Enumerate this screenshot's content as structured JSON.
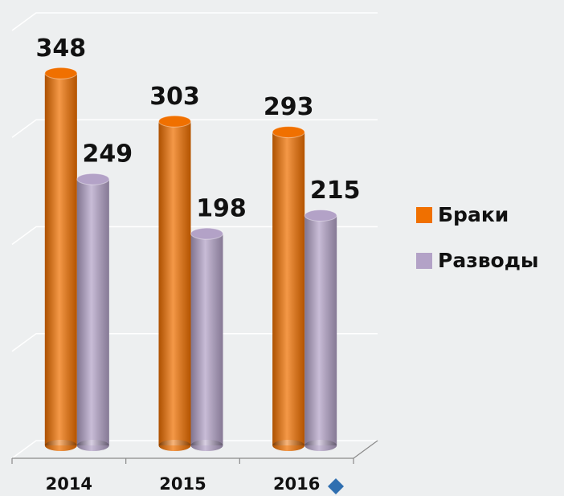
{
  "chart_data": {
    "type": "bar",
    "categories": [
      "2014",
      "2015",
      "2016"
    ],
    "series": [
      {
        "name": "Браки",
        "color": "#f07000",
        "values": [
          348,
          303,
          293
        ]
      },
      {
        "name": "Разводы",
        "color": "#b3a2c7",
        "values": [
          249,
          198,
          215
        ]
      }
    ],
    "ylim": [
      0,
      400
    ],
    "yticks": [
      0,
      100,
      200,
      300,
      400
    ],
    "grid": true,
    "legend": "right"
  }
}
